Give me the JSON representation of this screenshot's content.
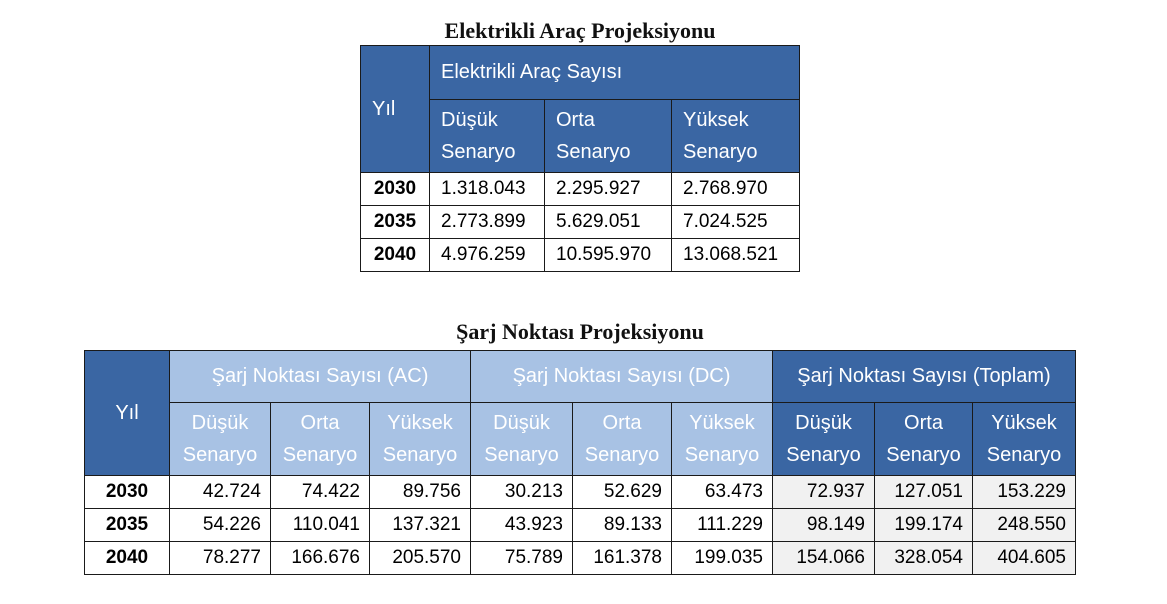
{
  "table1": {
    "title": "Elektrikli Araç Projeksiyonu",
    "year_header": "Yıl",
    "group_header": "Elektrikli Araç Sayısı",
    "scenarios": [
      {
        "line1": "Düşük",
        "line2": "Senaryo"
      },
      {
        "line1": "Orta",
        "line2": "Senaryo"
      },
      {
        "line1": "Yüksek",
        "line2": "Senaryo"
      }
    ],
    "rows": [
      {
        "year": "2030",
        "values": [
          "1.318.043",
          "2.295.927",
          "2.768.970"
        ]
      },
      {
        "year": "2035",
        "values": [
          "2.773.899",
          "5.629.051",
          "7.024.525"
        ]
      },
      {
        "year": "2040",
        "values": [
          "4.976.259",
          "10.595.970",
          "13.068.521"
        ]
      }
    ]
  },
  "table2": {
    "title": "Şarj Noktası Projeksiyonu",
    "year_header": "Yıl",
    "groups": [
      "Şarj Noktası Sayısı (AC)",
      "Şarj Noktası Sayısı (DC)",
      "Şarj Noktası Sayısı (Toplam)"
    ],
    "scenarios": [
      {
        "line1": "Düşük",
        "line2": "Senaryo"
      },
      {
        "line1": "Orta",
        "line2": "Senaryo"
      },
      {
        "line1": "Yüksek",
        "line2": "Senaryo"
      }
    ],
    "rows": [
      {
        "year": "2030",
        "values": [
          "42.724",
          "74.422",
          "89.756",
          "30.213",
          "52.629",
          "63.473",
          "72.937",
          "127.051",
          "153.229"
        ]
      },
      {
        "year": "2035",
        "values": [
          "54.226",
          "110.041",
          "137.321",
          "43.923",
          "89.133",
          "111.229",
          "98.149",
          "199.174",
          "248.550"
        ]
      },
      {
        "year": "2040",
        "values": [
          "78.277",
          "166.676",
          "205.570",
          "75.789",
          "161.378",
          "199.035",
          "154.066",
          "328.054",
          "404.605"
        ]
      }
    ]
  },
  "colors": {
    "header_dark": "#3a66a3",
    "header_light": "#a8c2e4",
    "total_cells": "#f1f1f1"
  }
}
